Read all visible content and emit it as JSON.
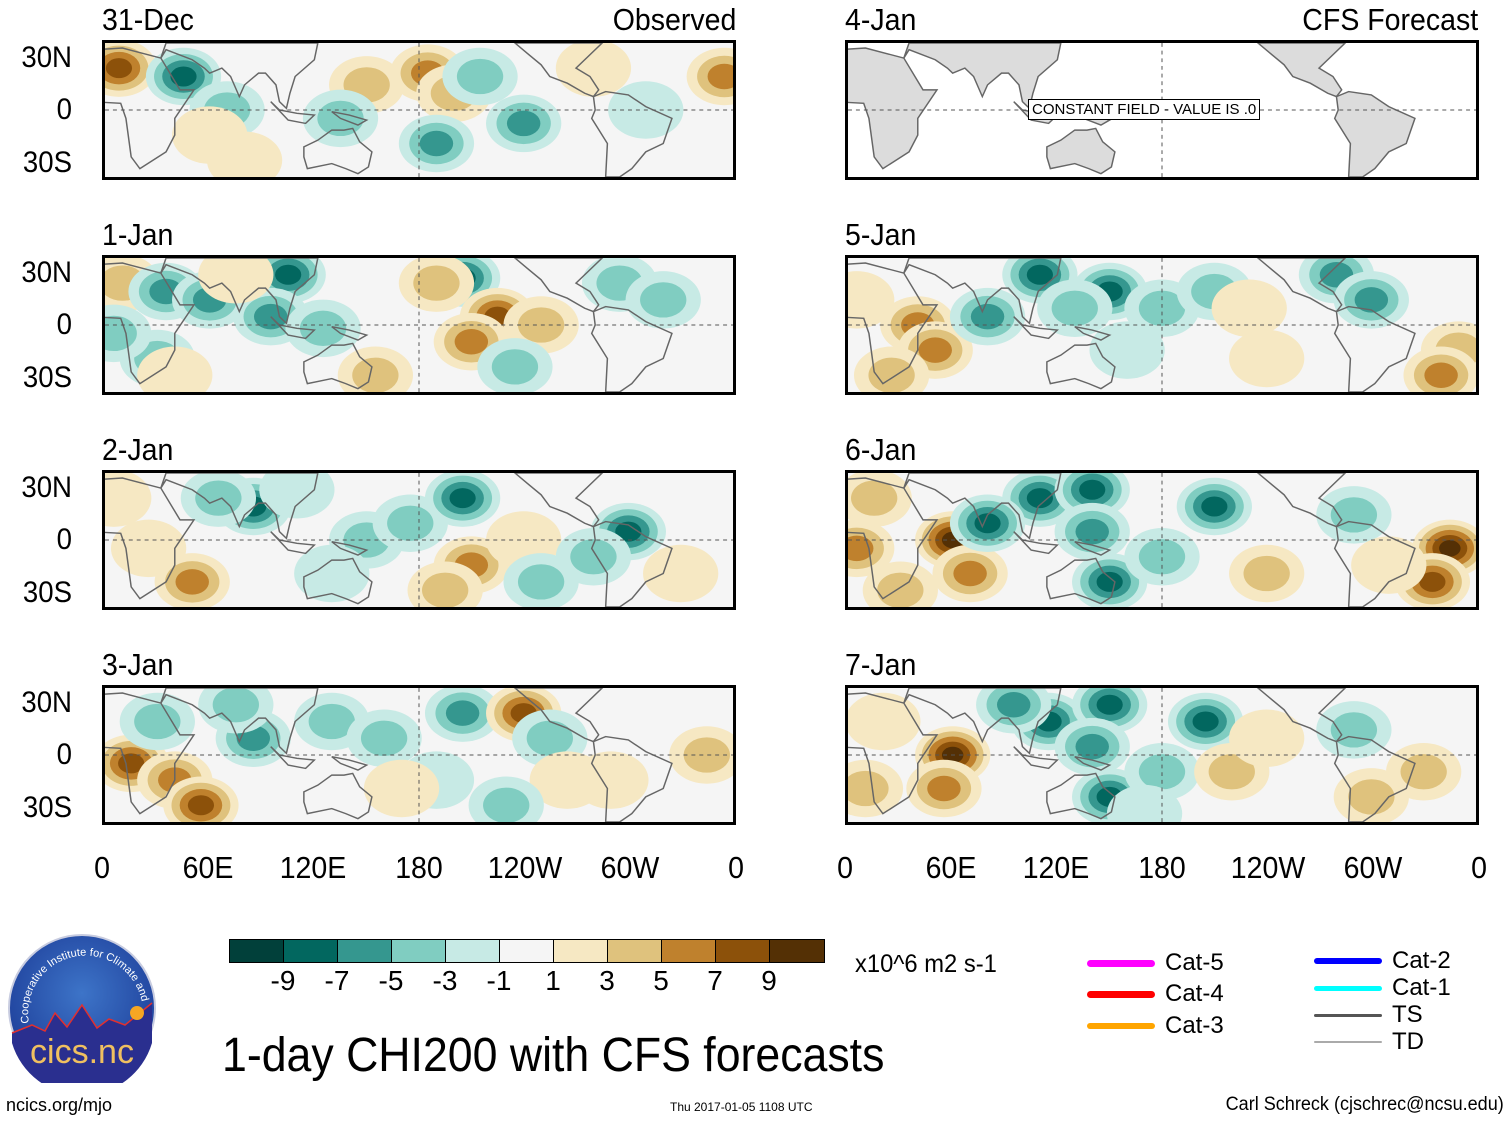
{
  "chart_data": {
    "type": "heatmap",
    "title": "1-day CHI200 with CFS forecasts",
    "variable": "200-hPa velocity potential (CHI200) anomaly",
    "units": "x10^6 m2 s-1",
    "columns": [
      {
        "header": "Observed",
        "panels": [
          "31-Dec",
          "1-Jan",
          "2-Jan",
          "3-Jan"
        ]
      },
      {
        "header": "CFS Forecast",
        "panels": [
          "4-Jan",
          "5-Jan",
          "6-Jan",
          "7-Jan"
        ]
      }
    ],
    "x_ticks": [
      "0",
      "60E",
      "120E",
      "180",
      "120W",
      "60W",
      "0"
    ],
    "y_ticks": [
      "30N",
      "0",
      "30S"
    ],
    "xlim_deg": [
      0,
      360
    ],
    "ylim_deg": [
      -40,
      40
    ],
    "colorbar": {
      "levels": [
        -9,
        -7,
        -5,
        -3,
        -1,
        1,
        3,
        5,
        7,
        9
      ],
      "tick_labels": [
        "-9",
        "-7",
        "-5",
        "-3",
        "-1",
        "1",
        "3",
        "5",
        "7",
        "9"
      ],
      "colors": [
        "#01403a",
        "#02675f",
        "#35978f",
        "#80cdc1",
        "#c7eae5",
        "#f5f5f5",
        "#f6e8c3",
        "#dfc27d",
        "#bf812d",
        "#8c510a",
        "#543005"
      ]
    },
    "annotations": [
      {
        "panel": "4-Jan",
        "text": "CONSTANT FIELD - VALUE IS .0"
      }
    ],
    "track_legend": [
      {
        "label": "Cat-5",
        "color": "#ff00ff"
      },
      {
        "label": "Cat-4",
        "color": "#ff0000"
      },
      {
        "label": "Cat-3",
        "color": "#ffa500"
      },
      {
        "label": "Cat-2",
        "color": "#0000ff"
      },
      {
        "label": "Cat-1",
        "color": "#00ffff"
      },
      {
        "label": "TS",
        "color": "#555555"
      },
      {
        "label": "TD",
        "color": "#aaaaaa"
      }
    ],
    "anomaly_features": [
      {
        "panel": "31-Dec",
        "blobs": [
          [
            8,
            25,
            8
          ],
          [
            45,
            20,
            -9
          ],
          [
            150,
            15,
            4
          ],
          [
            185,
            22,
            7
          ],
          [
            200,
            10,
            5
          ],
          [
            215,
            20,
            -5
          ],
          [
            190,
            -20,
            -6
          ],
          [
            240,
            -8,
            -6
          ],
          [
            70,
            0,
            -4
          ],
          [
            135,
            -5,
            -5
          ],
          [
            60,
            -15,
            3
          ],
          [
            280,
            25,
            3
          ],
          [
            355,
            20,
            7
          ],
          [
            310,
            0,
            -3
          ],
          [
            80,
            -30,
            2
          ]
        ]
      },
      {
        "panel": "1-Jan",
        "blobs": [
          [
            10,
            25,
            5
          ],
          [
            35,
            20,
            -7
          ],
          [
            60,
            15,
            -6
          ],
          [
            105,
            30,
            -8
          ],
          [
            95,
            5,
            -7
          ],
          [
            75,
            30,
            2
          ],
          [
            125,
            -2,
            -4
          ],
          [
            205,
            28,
            -9
          ],
          [
            190,
            25,
            5
          ],
          [
            225,
            5,
            8
          ],
          [
            210,
            -10,
            6
          ],
          [
            250,
            0,
            4
          ],
          [
            295,
            25,
            -4
          ],
          [
            320,
            15,
            -4
          ],
          [
            235,
            -25,
            -4
          ],
          [
            155,
            -30,
            5
          ],
          [
            30,
            -20,
            -4
          ],
          [
            40,
            -30,
            2
          ],
          [
            5,
            -5,
            -4
          ]
        ]
      },
      {
        "panel": "2-Jan",
        "blobs": [
          [
            5,
            25,
            3
          ],
          [
            25,
            -5,
            3
          ],
          [
            50,
            -25,
            6
          ],
          [
            85,
            20,
            -8
          ],
          [
            65,
            25,
            -5
          ],
          [
            110,
            30,
            -3
          ],
          [
            150,
            0,
            -4
          ],
          [
            175,
            10,
            -5
          ],
          [
            205,
            25,
            -9
          ],
          [
            210,
            -15,
            6
          ],
          [
            195,
            -30,
            4
          ],
          [
            240,
            0,
            3
          ],
          [
            300,
            5,
            -8
          ],
          [
            280,
            -10,
            -4
          ],
          [
            250,
            -25,
            -4
          ],
          [
            130,
            -20,
            -3
          ],
          [
            330,
            -20,
            3
          ]
        ]
      },
      {
        "panel": "3-Jan",
        "blobs": [
          [
            15,
            -5,
            9
          ],
          [
            40,
            -15,
            7
          ],
          [
            55,
            -30,
            8
          ],
          [
            30,
            20,
            -4
          ],
          [
            85,
            10,
            -7
          ],
          [
            75,
            30,
            -4
          ],
          [
            130,
            20,
            -5
          ],
          [
            160,
            10,
            -4
          ],
          [
            205,
            25,
            -7
          ],
          [
            240,
            25,
            9
          ],
          [
            255,
            10,
            -5
          ],
          [
            265,
            -15,
            3
          ],
          [
            230,
            -30,
            -5
          ],
          [
            190,
            -15,
            -3
          ],
          [
            170,
            -20,
            3
          ],
          [
            345,
            0,
            4
          ],
          [
            290,
            -15,
            3
          ]
        ]
      },
      {
        "panel": "5-Jan",
        "blobs": [
          [
            5,
            15,
            3
          ],
          [
            40,
            0,
            7
          ],
          [
            50,
            -15,
            6
          ],
          [
            25,
            -30,
            4
          ],
          [
            80,
            5,
            -6
          ],
          [
            110,
            30,
            -9
          ],
          [
            150,
            20,
            -8
          ],
          [
            180,
            10,
            -5
          ],
          [
            130,
            10,
            -4
          ],
          [
            210,
            20,
            -4
          ],
          [
            230,
            10,
            3
          ],
          [
            280,
            30,
            -6
          ],
          [
            300,
            15,
            -7
          ],
          [
            350,
            -15,
            5
          ],
          [
            340,
            -30,
            7
          ],
          [
            240,
            -20,
            2
          ],
          [
            160,
            -15,
            -3
          ]
        ]
      },
      {
        "panel": "6-Jan",
        "blobs": [
          [
            60,
            0,
            10
          ],
          [
            70,
            -20,
            7
          ],
          [
            5,
            -5,
            6
          ],
          [
            15,
            25,
            4
          ],
          [
            110,
            25,
            -8
          ],
          [
            140,
            30,
            -9
          ],
          [
            80,
            10,
            -8
          ],
          [
            140,
            5,
            -6
          ],
          [
            150,
            -25,
            -9
          ],
          [
            210,
            20,
            -9
          ],
          [
            180,
            -10,
            -4
          ],
          [
            240,
            -20,
            4
          ],
          [
            290,
            15,
            -5
          ],
          [
            345,
            -5,
            10
          ],
          [
            335,
            -25,
            8
          ],
          [
            310,
            -15,
            3
          ],
          [
            30,
            -30,
            5
          ]
        ]
      },
      {
        "panel": "7-Jan",
        "blobs": [
          [
            60,
            0,
            10
          ],
          [
            55,
            -20,
            7
          ],
          [
            10,
            -20,
            5
          ],
          [
            20,
            20,
            3
          ],
          [
            115,
            20,
            -8
          ],
          [
            150,
            30,
            -8
          ],
          [
            95,
            30,
            -6
          ],
          [
            140,
            5,
            -6
          ],
          [
            150,
            -25,
            -8
          ],
          [
            205,
            20,
            -8
          ],
          [
            180,
            -10,
            -4
          ],
          [
            220,
            -10,
            5
          ],
          [
            240,
            10,
            3
          ],
          [
            290,
            15,
            -5
          ],
          [
            330,
            -10,
            4
          ],
          [
            300,
            -25,
            5
          ],
          [
            170,
            -35,
            -3
          ]
        ]
      }
    ]
  },
  "footer": {
    "logo_text": "cics.nc",
    "logo_ring_text": "Cooperative Institute for Climate and Satellites",
    "site": "ncics.org/mjo",
    "timestamp": "Thu 2017-01-05 1108 UTC",
    "author": "Carl Schreck (cjschrec@ncsu.edu)"
  }
}
